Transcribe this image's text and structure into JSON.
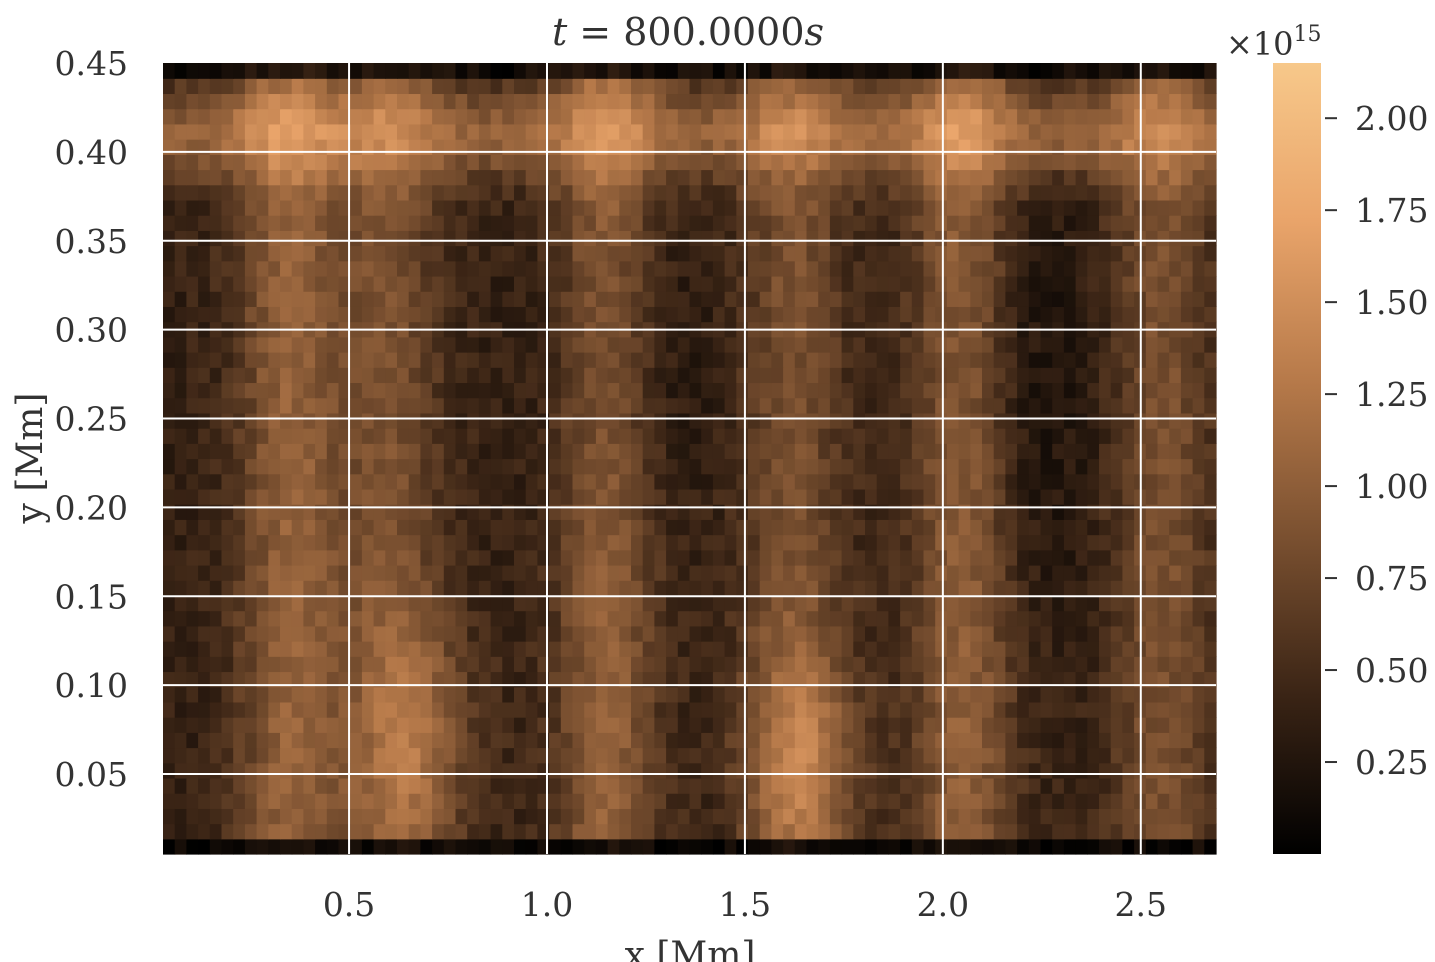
{
  "chart_data": {
    "type": "heatmap",
    "title_var": "t",
    "title_eq": " = 800.0000",
    "title_unit": "s",
    "xlabel": "x [Mm]",
    "ylabel": "y [Mm]",
    "xlim": [
      0.03,
      2.69
    ],
    "ylim": [
      0.005,
      0.45
    ],
    "xticks": [
      "0.5",
      "1.0",
      "1.5",
      "2.0",
      "2.5"
    ],
    "yticks": [
      "0.05",
      "0.10",
      "0.15",
      "0.20",
      "0.25",
      "0.30",
      "0.35",
      "0.40",
      "0.45"
    ],
    "grid": true,
    "colormap": "copper",
    "colorbar": {
      "range": [
        0.0,
        2150000000000000.0
      ],
      "multiplier_base": "×10",
      "multiplier_exp": "15",
      "ticks": [
        "0.25",
        "0.50",
        "0.75",
        "1.00",
        "1.25",
        "1.50",
        "1.75",
        "2.00"
      ],
      "colors": [
        "#000000",
        "#3a2415",
        "#7a5030",
        "#b77a4a",
        "#e9a46a",
        "#f7c88a"
      ]
    },
    "grid_shape": [
      90,
      52
    ],
    "field": {
      "bright_columns_x": [
        0.35,
        0.6,
        1.15,
        1.62,
        2.05,
        2.55
      ],
      "bright_rows_y": [
        0.41,
        0.05
      ],
      "description_values_range": [
        0.0,
        2100000000000000.0
      ]
    }
  }
}
